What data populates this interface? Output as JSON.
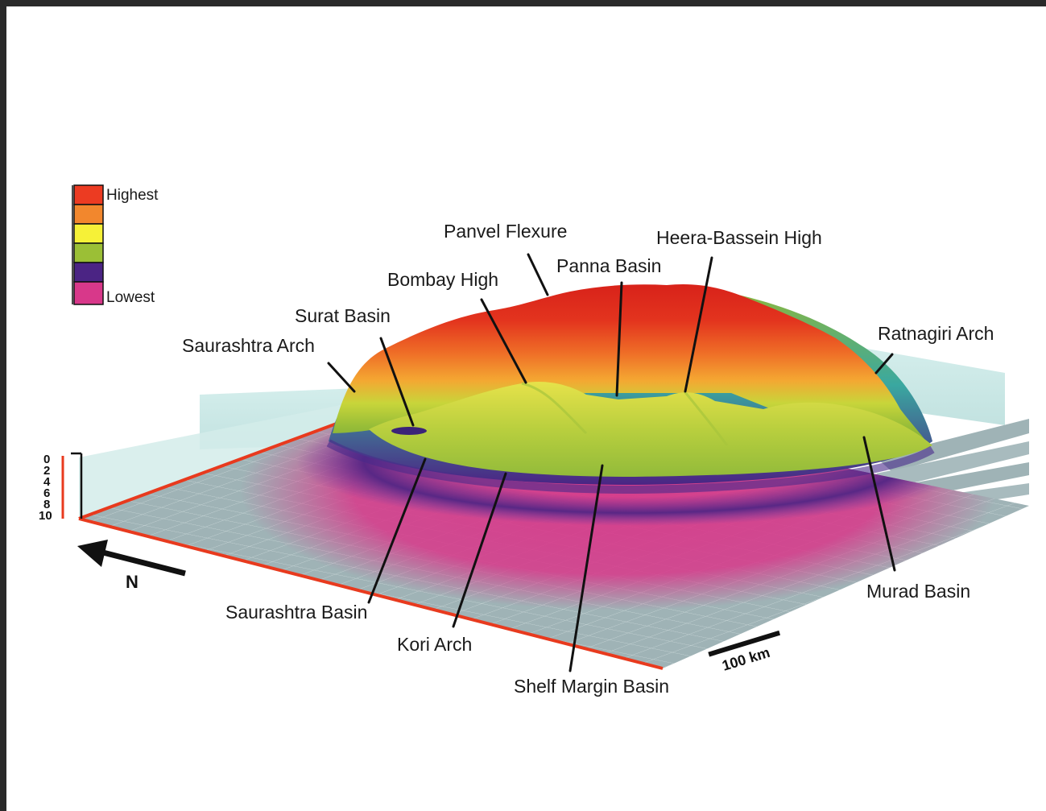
{
  "legend": {
    "colors": [
      "#ec3b22",
      "#f2872d",
      "#f6f137",
      "#9bbf36",
      "#4b2484",
      "#d8388a"
    ],
    "high_label": "Highest",
    "low_label": "Lowest"
  },
  "depth_scale": {
    "ticks": [
      "0",
      "2",
      "4",
      "6",
      "8",
      "10"
    ]
  },
  "north_label": "N",
  "scale_bar_label": "100 km",
  "features": {
    "panvel_flexure": "Panvel Flexure",
    "heera_bassein_high": "Heera-Bassein High",
    "panna_basin": "Panna Basin",
    "bombay_high": "Bombay High",
    "surat_basin": "Surat Basin",
    "saurashtra_arch": "Saurashtra Arch",
    "ratnagiri_arch": "Ratnagiri Arch",
    "saurashtra_basin": "Saurashtra Basin",
    "kori_arch": "Kori Arch",
    "shelf_margin_basin": "Shelf Margin Basin",
    "murad_basin": "Murad Basin"
  }
}
